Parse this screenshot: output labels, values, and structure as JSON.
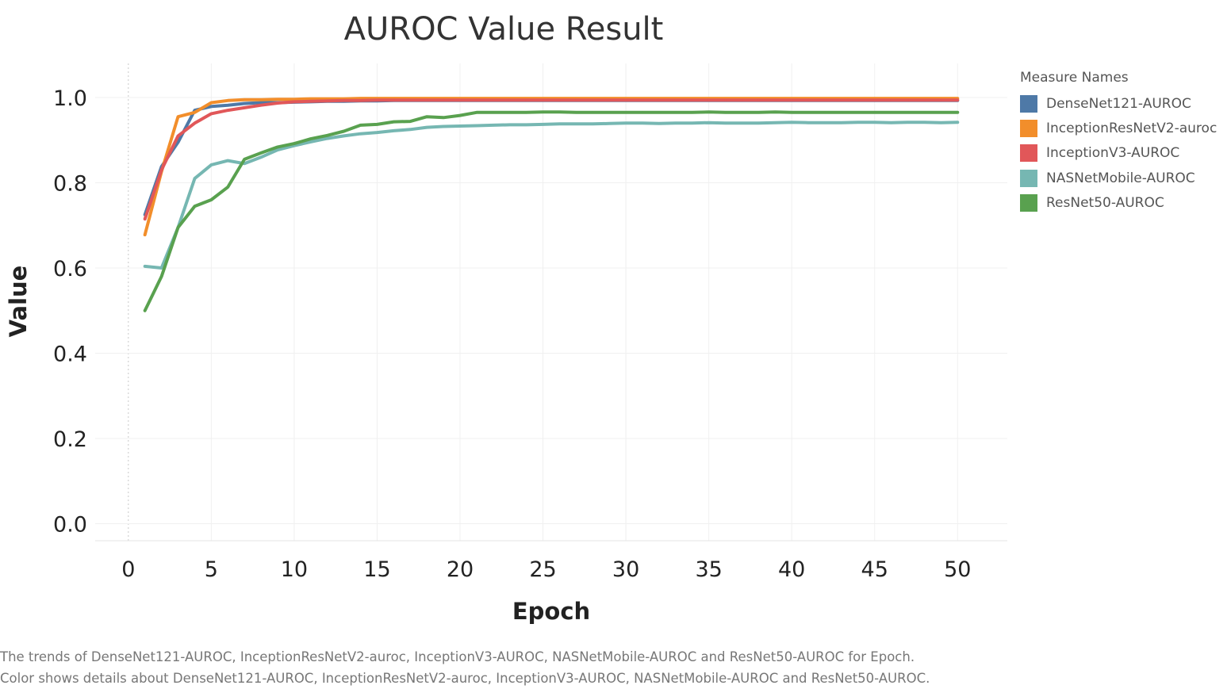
{
  "chart_data": {
    "type": "line",
    "title": "AUROC Value Result",
    "xlabel": "Epoch",
    "ylabel": "Value",
    "xlim": [
      -2,
      53
    ],
    "ylim": [
      -0.04,
      1.08
    ],
    "xticks": [
      "0",
      "5",
      "10",
      "15",
      "20",
      "25",
      "30",
      "35",
      "40",
      "45",
      "50"
    ],
    "yticks": [
      "0.0",
      "0.2",
      "0.4",
      "0.6",
      "0.8",
      "1.0"
    ],
    "grid": true,
    "legend_title": "Measure Names",
    "legend_position": "right",
    "x": [
      1,
      2,
      3,
      4,
      5,
      6,
      7,
      8,
      9,
      10,
      11,
      12,
      13,
      14,
      15,
      16,
      17,
      18,
      19,
      20,
      21,
      22,
      23,
      24,
      25,
      26,
      27,
      28,
      29,
      30,
      31,
      32,
      33,
      34,
      35,
      36,
      37,
      38,
      39,
      40,
      41,
      42,
      43,
      44,
      45,
      46,
      47,
      48,
      49,
      50
    ],
    "series": [
      {
        "name": "DenseNet121-AUROC",
        "color": "#4e79a7",
        "values": [
          0.725,
          0.838,
          0.895,
          0.97,
          0.979,
          0.982,
          0.986,
          0.988,
          0.988,
          0.989,
          0.99,
          0.991,
          0.991,
          0.992,
          0.992,
          0.993,
          0.993,
          0.993,
          0.993,
          0.993,
          0.993,
          0.993,
          0.993,
          0.993,
          0.993,
          0.993,
          0.993,
          0.993,
          0.993,
          0.993,
          0.993,
          0.993,
          0.993,
          0.993,
          0.993,
          0.993,
          0.993,
          0.993,
          0.993,
          0.993,
          0.993,
          0.993,
          0.993,
          0.993,
          0.993,
          0.993,
          0.993,
          0.993,
          0.993,
          0.993
        ]
      },
      {
        "name": "InceptionResNetV2-auroc",
        "color": "#f28e2b",
        "values": [
          0.678,
          0.826,
          0.955,
          0.965,
          0.988,
          0.993,
          0.995,
          0.995,
          0.996,
          0.996,
          0.997,
          0.997,
          0.997,
          0.998,
          0.998,
          0.998,
          0.998,
          0.998,
          0.998,
          0.998,
          0.998,
          0.998,
          0.998,
          0.998,
          0.998,
          0.998,
          0.998,
          0.998,
          0.998,
          0.998,
          0.998,
          0.998,
          0.998,
          0.998,
          0.998,
          0.998,
          0.998,
          0.998,
          0.998,
          0.998,
          0.998,
          0.998,
          0.998,
          0.998,
          0.998,
          0.998,
          0.998,
          0.998,
          0.998,
          0.998
        ]
      },
      {
        "name": "InceptionV3-AUROC",
        "color": "#e15759",
        "values": [
          0.715,
          0.83,
          0.91,
          0.94,
          0.962,
          0.97,
          0.976,
          0.982,
          0.987,
          0.99,
          0.991,
          0.992,
          0.993,
          0.993,
          0.994,
          0.994,
          0.994,
          0.994,
          0.994,
          0.994,
          0.994,
          0.994,
          0.994,
          0.994,
          0.994,
          0.994,
          0.994,
          0.994,
          0.994,
          0.994,
          0.994,
          0.994,
          0.994,
          0.994,
          0.994,
          0.994,
          0.994,
          0.994,
          0.994,
          0.994,
          0.994,
          0.994,
          0.994,
          0.994,
          0.994,
          0.994,
          0.994,
          0.994,
          0.994,
          0.994
        ]
      },
      {
        "name": "NASNetMobile-AUROC",
        "color": "#76b7b2",
        "values": [
          0.604,
          0.6,
          0.695,
          0.81,
          0.842,
          0.852,
          0.845,
          0.86,
          0.877,
          0.887,
          0.896,
          0.904,
          0.91,
          0.915,
          0.918,
          0.922,
          0.925,
          0.93,
          0.932,
          0.933,
          0.934,
          0.935,
          0.936,
          0.936,
          0.937,
          0.938,
          0.938,
          0.938,
          0.939,
          0.94,
          0.94,
          0.939,
          0.94,
          0.94,
          0.941,
          0.94,
          0.94,
          0.94,
          0.941,
          0.942,
          0.941,
          0.941,
          0.941,
          0.942,
          0.942,
          0.941,
          0.942,
          0.942,
          0.941,
          0.942
        ]
      },
      {
        "name": "ResNet50-AUROC",
        "color": "#59a14f",
        "values": [
          0.5,
          0.58,
          0.695,
          0.745,
          0.76,
          0.79,
          0.855,
          0.87,
          0.884,
          0.892,
          0.903,
          0.911,
          0.921,
          0.935,
          0.937,
          0.943,
          0.944,
          0.955,
          0.953,
          0.958,
          0.965,
          0.965,
          0.965,
          0.965,
          0.966,
          0.966,
          0.965,
          0.965,
          0.965,
          0.965,
          0.965,
          0.965,
          0.965,
          0.965,
          0.966,
          0.965,
          0.965,
          0.965,
          0.966,
          0.965,
          0.965,
          0.965,
          0.965,
          0.965,
          0.965,
          0.965,
          0.965,
          0.965,
          0.965,
          0.965
        ]
      }
    ]
  },
  "caption": {
    "line1": "The trends of DenseNet121-AUROC, InceptionResNetV2-auroc, InceptionV3-AUROC, NASNetMobile-AUROC and ResNet50-AUROC for Epoch.",
    "line2": "Color shows details about DenseNet121-AUROC, InceptionResNetV2-auroc, InceptionV3-AUROC, NASNetMobile-AUROC and ResNet50-AUROC."
  }
}
